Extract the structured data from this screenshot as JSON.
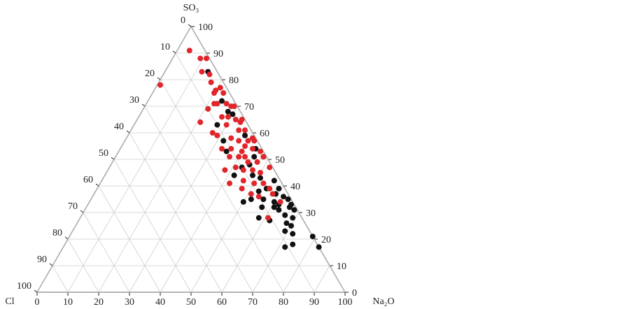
{
  "chart_data": {
    "type": "ternary",
    "top_label": "SO₃",
    "right_label": "Na₂O",
    "left_label": "Cl",
    "so3_ticks": [
      0,
      10,
      20,
      30,
      40,
      50,
      60,
      70,
      80,
      90,
      100
    ],
    "na2o_ticks": [
      0,
      10,
      20,
      30,
      40,
      50,
      60,
      70,
      80,
      90,
      100
    ],
    "cl_ticks": [
      0,
      10,
      20,
      30,
      40,
      50,
      60,
      70,
      80,
      90,
      100
    ],
    "grid": true,
    "series": [
      {
        "color": "#111111",
        "so3": [
          83,
          72,
          68,
          67,
          63,
          57,
          59,
          54,
          51,
          47,
          44,
          43,
          42,
          39,
          39,
          38,
          37,
          36,
          35,
          33,
          31,
          34,
          35,
          32,
          32,
          31,
          32,
          28,
          27,
          29,
          28,
          25,
          23,
          22,
          17,
          18,
          21,
          17,
          44,
          48,
          51,
          53,
          34,
          33,
          35,
          26
        ],
        "na2o": [
          14,
          24,
          28,
          30,
          27,
          32,
          38,
          44,
          48,
          43,
          48,
          51,
          56,
          55,
          59,
          53,
          59,
          62,
          64,
          66,
          68,
          50,
          52,
          57,
          61,
          63,
          66,
          58,
          62,
          66,
          69,
          70,
          69,
          72,
          72,
          74,
          79,
          83,
          42,
          45,
          45,
          35,
          60,
          62,
          56,
          68
        ],
        "cl": [
          3,
          4,
          4,
          3,
          10,
          11,
          3,
          2,
          1,
          10,
          8,
          6,
          2,
          6,
          2,
          9,
          4,
          2,
          1,
          1,
          1,
          16,
          13,
          11,
          7,
          6,
          2,
          14,
          11,
          5,
          3,
          5,
          8,
          6,
          11,
          8,
          0,
          0,
          14,
          7,
          4,
          12,
          6,
          5,
          9,
          6
        ]
      },
      {
        "color": "#e0262b",
        "so3": [
          91,
          88,
          88,
          83,
          78,
          82,
          79,
          76,
          77,
          75,
          69,
          71,
          71,
          71,
          70,
          70,
          64,
          66,
          66,
          65,
          65,
          63,
          61,
          61,
          60,
          59,
          58,
          57,
          57,
          58,
          57,
          54,
          54,
          53,
          54,
          53,
          51,
          51,
          49,
          49,
          51,
          46,
          46,
          46,
          45,
          47,
          42,
          41,
          41,
          41,
          39,
          39,
          37,
          36,
          37,
          34,
          28,
          51,
          47,
          75,
          64,
          55
        ],
        "na2o": [
          4,
          9,
          11,
          12,
          1,
          15,
          17,
          20,
          21,
          23,
          21,
          22,
          23,
          26,
          28,
          29,
          21,
          27,
          29,
          32,
          34,
          30,
          35,
          37,
          27,
          29,
          34,
          37,
          40,
          41,
          42,
          33,
          36,
          40,
          43,
          46,
          37,
          40,
          44,
          47,
          48,
          38,
          44,
          47,
          50,
          52,
          46,
          50,
          53,
          42,
          56,
          47,
          51,
          54,
          58,
          62,
          61,
          42,
          41,
          20,
          34,
          40
        ],
        "cl": [
          5,
          3,
          1,
          5,
          21,
          3,
          4,
          4,
          2,
          2,
          10,
          7,
          6,
          3,
          2,
          1,
          15,
          7,
          5,
          3,
          1,
          7,
          4,
          2,
          13,
          12,
          8,
          6,
          3,
          1,
          1,
          13,
          10,
          7,
          3,
          1,
          12,
          9,
          7,
          4,
          1,
          16,
          10,
          7,
          5,
          1,
          12,
          9,
          6,
          17,
          5,
          14,
          12,
          10,
          5,
          4,
          11,
          7,
          12,
          5,
          2,
          5
        ]
      }
    ]
  }
}
